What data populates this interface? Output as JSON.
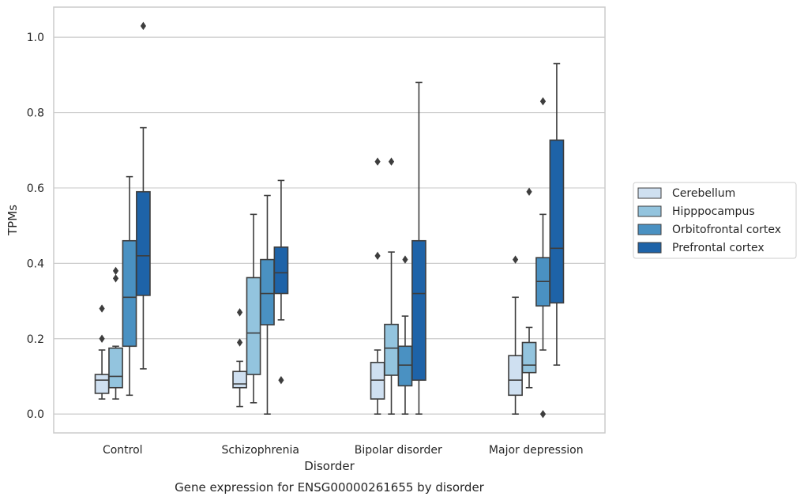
{
  "caption": "Gene expression for ENSG00000261655 by disorder",
  "chart_data": {
    "type": "boxplot",
    "title": "",
    "xlabel": "Disorder",
    "ylabel": "TPMs",
    "ylim": [
      -0.05,
      1.08
    ],
    "yticks": [
      0.0,
      0.2,
      0.4,
      0.6,
      0.8,
      1.0
    ],
    "ytick_labels": [
      "0.0",
      "0.2",
      "0.4",
      "0.6",
      "0.8",
      "1.0"
    ],
    "grid": "horizontal",
    "legend_position": "right",
    "categories": [
      "Control",
      "Schizophrenia",
      "Bipolar disorder",
      "Major depression"
    ],
    "series": [
      {
        "name": "Cerebellum",
        "color": "#cfe0f1",
        "boxes": [
          {
            "whisker_low": 0.04,
            "q1": 0.055,
            "median": 0.09,
            "q3": 0.105,
            "whisker_high": 0.17,
            "outliers": [
              0.2,
              0.28
            ]
          },
          {
            "whisker_low": 0.02,
            "q1": 0.07,
            "median": 0.08,
            "q3": 0.113,
            "whisker_high": 0.14,
            "outliers": [
              0.19,
              0.27
            ]
          },
          {
            "whisker_low": 0.0,
            "q1": 0.04,
            "median": 0.09,
            "q3": 0.137,
            "whisker_high": 0.17,
            "outliers": [
              0.42,
              0.67
            ]
          },
          {
            "whisker_low": 0.0,
            "q1": 0.05,
            "median": 0.09,
            "q3": 0.155,
            "whisker_high": 0.31,
            "outliers": [
              0.41
            ]
          }
        ]
      },
      {
        "name": "Hipppocampus",
        "color": "#93c4de",
        "boxes": [
          {
            "whisker_low": 0.04,
            "q1": 0.07,
            "median": 0.1,
            "q3": 0.175,
            "whisker_high": 0.18,
            "outliers": [
              0.36,
              0.38
            ]
          },
          {
            "whisker_low": 0.03,
            "q1": 0.105,
            "median": 0.215,
            "q3": 0.362,
            "whisker_high": 0.53,
            "outliers": []
          },
          {
            "whisker_low": 0.0,
            "q1": 0.103,
            "median": 0.175,
            "q3": 0.238,
            "whisker_high": 0.43,
            "outliers": [
              0.67
            ]
          },
          {
            "whisker_low": 0.07,
            "q1": 0.11,
            "median": 0.13,
            "q3": 0.19,
            "whisker_high": 0.23,
            "outliers": [
              0.59
            ]
          }
        ]
      },
      {
        "name": "Orbitofrontal cortex",
        "color": "#4a91c2",
        "boxes": [
          {
            "whisker_low": 0.05,
            "q1": 0.18,
            "median": 0.31,
            "q3": 0.46,
            "whisker_high": 0.63,
            "outliers": []
          },
          {
            "whisker_low": 0.0,
            "q1": 0.237,
            "median": 0.32,
            "q3": 0.41,
            "whisker_high": 0.58,
            "outliers": []
          },
          {
            "whisker_low": 0.0,
            "q1": 0.075,
            "median": 0.13,
            "q3": 0.18,
            "whisker_high": 0.26,
            "outliers": [
              0.41
            ]
          },
          {
            "whisker_low": 0.17,
            "q1": 0.287,
            "median": 0.352,
            "q3": 0.415,
            "whisker_high": 0.53,
            "outliers": [
              0.0,
              0.83
            ]
          }
        ]
      },
      {
        "name": "Prefrontal cortex",
        "color": "#1e63a8",
        "boxes": [
          {
            "whisker_low": 0.12,
            "q1": 0.315,
            "median": 0.42,
            "q3": 0.59,
            "whisker_high": 0.76,
            "outliers": [
              1.03
            ]
          },
          {
            "whisker_low": 0.25,
            "q1": 0.32,
            "median": 0.375,
            "q3": 0.443,
            "whisker_high": 0.62,
            "outliers": [
              0.09
            ]
          },
          {
            "whisker_low": 0.0,
            "q1": 0.09,
            "median": 0.32,
            "q3": 0.46,
            "whisker_high": 0.88,
            "outliers": []
          },
          {
            "whisker_low": 0.13,
            "q1": 0.295,
            "median": 0.44,
            "q3": 0.727,
            "whisker_high": 0.93,
            "outliers": []
          }
        ]
      }
    ]
  }
}
